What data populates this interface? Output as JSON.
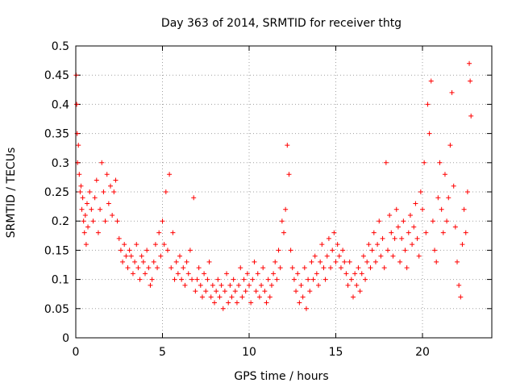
{
  "chart_data": {
    "type": "scatter",
    "title": "Day 363 of 2014, SRMTID for receiver thtg",
    "xlabel": "GPS time / hours",
    "ylabel": "SRMTID / TECUs",
    "xlim": [
      0,
      24
    ],
    "ylim": [
      0,
      0.5
    ],
    "xticks": [
      0,
      5,
      10,
      15,
      20
    ],
    "xtick_labels": [
      "0",
      "5",
      "10",
      "15",
      "20"
    ],
    "yticks": [
      0,
      0.05,
      0.1,
      0.15,
      0.2,
      0.25,
      0.3,
      0.35,
      0.4,
      0.45,
      0.5
    ],
    "ytick_labels": [
      "0",
      "0.05",
      "0.1",
      "0.15",
      "0.2",
      "0.25",
      "0.3",
      "0.35",
      "0.4",
      "0.45",
      "0.5"
    ],
    "grid": true,
    "marker": "plus",
    "color": "#ff0000",
    "series": [
      {
        "name": "SRMTID",
        "points": [
          [
            0.02,
            0.45
          ],
          [
            0.05,
            0.4
          ],
          [
            0.08,
            0.35
          ],
          [
            0.1,
            0.3
          ],
          [
            0.15,
            0.33
          ],
          [
            0.2,
            0.28
          ],
          [
            0.25,
            0.25
          ],
          [
            0.3,
            0.26
          ],
          [
            0.35,
            0.22
          ],
          [
            0.4,
            0.24
          ],
          [
            0.45,
            0.2
          ],
          [
            0.5,
            0.18
          ],
          [
            0.55,
            0.21
          ],
          [
            0.6,
            0.16
          ],
          [
            0.65,
            0.23
          ],
          [
            0.7,
            0.19
          ],
          [
            0.8,
            0.25
          ],
          [
            0.9,
            0.22
          ],
          [
            1.0,
            0.2
          ],
          [
            1.1,
            0.24
          ],
          [
            1.2,
            0.27
          ],
          [
            1.3,
            0.18
          ],
          [
            1.4,
            0.22
          ],
          [
            1.5,
            0.3
          ],
          [
            1.6,
            0.25
          ],
          [
            1.7,
            0.2
          ],
          [
            1.8,
            0.28
          ],
          [
            1.9,
            0.23
          ],
          [
            2.0,
            0.26
          ],
          [
            2.1,
            0.21
          ],
          [
            2.2,
            0.25
          ],
          [
            2.3,
            0.27
          ],
          [
            2.4,
            0.2
          ],
          [
            2.5,
            0.17
          ],
          [
            2.6,
            0.15
          ],
          [
            2.7,
            0.13
          ],
          [
            2.8,
            0.16
          ],
          [
            2.9,
            0.14
          ],
          [
            3.0,
            0.12
          ],
          [
            3.1,
            0.15
          ],
          [
            3.2,
            0.14
          ],
          [
            3.3,
            0.11
          ],
          [
            3.4,
            0.13
          ],
          [
            3.5,
            0.16
          ],
          [
            3.6,
            0.12
          ],
          [
            3.7,
            0.1
          ],
          [
            3.8,
            0.14
          ],
          [
            3.9,
            0.13
          ],
          [
            4.0,
            0.11
          ],
          [
            4.1,
            0.15
          ],
          [
            4.2,
            0.12
          ],
          [
            4.3,
            0.09
          ],
          [
            4.4,
            0.1
          ],
          [
            4.5,
            0.13
          ],
          [
            4.6,
            0.16
          ],
          [
            4.7,
            0.12
          ],
          [
            4.8,
            0.18
          ],
          [
            4.9,
            0.14
          ],
          [
            5.0,
            0.2
          ],
          [
            5.1,
            0.16
          ],
          [
            5.2,
            0.25
          ],
          [
            5.3,
            0.15
          ],
          [
            5.4,
            0.28
          ],
          [
            5.5,
            0.12
          ],
          [
            5.6,
            0.18
          ],
          [
            5.7,
            0.1
          ],
          [
            5.8,
            0.13
          ],
          [
            5.9,
            0.11
          ],
          [
            6.0,
            0.14
          ],
          [
            6.1,
            0.1
          ],
          [
            6.2,
            0.12
          ],
          [
            6.3,
            0.09
          ],
          [
            6.4,
            0.13
          ],
          [
            6.5,
            0.11
          ],
          [
            6.6,
            0.15
          ],
          [
            6.7,
            0.1
          ],
          [
            6.8,
            0.24
          ],
          [
            6.9,
            0.08
          ],
          [
            7.0,
            0.1
          ],
          [
            7.1,
            0.12
          ],
          [
            7.2,
            0.09
          ],
          [
            7.3,
            0.07
          ],
          [
            7.4,
            0.11
          ],
          [
            7.5,
            0.08
          ],
          [
            7.6,
            0.1
          ],
          [
            7.7,
            0.13
          ],
          [
            7.8,
            0.07
          ],
          [
            7.9,
            0.09
          ],
          [
            8.0,
            0.06
          ],
          [
            8.1,
            0.08
          ],
          [
            8.2,
            0.1
          ],
          [
            8.3,
            0.07
          ],
          [
            8.4,
            0.09
          ],
          [
            8.5,
            0.05
          ],
          [
            8.6,
            0.08
          ],
          [
            8.7,
            0.11
          ],
          [
            8.8,
            0.06
          ],
          [
            8.9,
            0.09
          ],
          [
            9.0,
            0.07
          ],
          [
            9.1,
            0.1
          ],
          [
            9.2,
            0.08
          ],
          [
            9.3,
            0.06
          ],
          [
            9.4,
            0.09
          ],
          [
            9.5,
            0.12
          ],
          [
            9.6,
            0.07
          ],
          [
            9.7,
            0.1
          ],
          [
            9.8,
            0.08
          ],
          [
            9.9,
            0.11
          ],
          [
            10.0,
            0.09
          ],
          [
            10.1,
            0.06
          ],
          [
            10.2,
            0.1
          ],
          [
            10.3,
            0.13
          ],
          [
            10.4,
            0.08
          ],
          [
            10.5,
            0.11
          ],
          [
            10.6,
            0.07
          ],
          [
            10.7,
            0.09
          ],
          [
            10.8,
            0.12
          ],
          [
            10.9,
            0.08
          ],
          [
            11.0,
            0.06
          ],
          [
            11.1,
            0.1
          ],
          [
            11.2,
            0.07
          ],
          [
            11.3,
            0.09
          ],
          [
            11.4,
            0.11
          ],
          [
            11.5,
            0.13
          ],
          [
            11.6,
            0.1
          ],
          [
            11.7,
            0.15
          ],
          [
            11.8,
            0.12
          ],
          [
            11.9,
            0.2
          ],
          [
            12.0,
            0.18
          ],
          [
            12.1,
            0.22
          ],
          [
            12.2,
            0.33
          ],
          [
            12.3,
            0.28
          ],
          [
            12.4,
            0.15
          ],
          [
            12.5,
            0.12
          ],
          [
            12.6,
            0.1
          ],
          [
            12.7,
            0.08
          ],
          [
            12.8,
            0.11
          ],
          [
            12.9,
            0.06
          ],
          [
            13.0,
            0.09
          ],
          [
            13.1,
            0.07
          ],
          [
            13.2,
            0.12
          ],
          [
            13.3,
            0.05
          ],
          [
            13.4,
            0.1
          ],
          [
            13.5,
            0.08
          ],
          [
            13.6,
            0.13
          ],
          [
            13.7,
            0.1
          ],
          [
            13.8,
            0.14
          ],
          [
            13.9,
            0.11
          ],
          [
            14.0,
            0.09
          ],
          [
            14.1,
            0.13
          ],
          [
            14.2,
            0.16
          ],
          [
            14.3,
            0.12
          ],
          [
            14.4,
            0.1
          ],
          [
            14.5,
            0.14
          ],
          [
            14.6,
            0.17
          ],
          [
            14.7,
            0.12
          ],
          [
            14.8,
            0.15
          ],
          [
            14.9,
            0.18
          ],
          [
            15.0,
            0.13
          ],
          [
            15.1,
            0.16
          ],
          [
            15.2,
            0.14
          ],
          [
            15.3,
            0.12
          ],
          [
            15.4,
            0.15
          ],
          [
            15.5,
            0.13
          ],
          [
            15.6,
            0.11
          ],
          [
            15.7,
            0.09
          ],
          [
            15.8,
            0.13
          ],
          [
            15.9,
            0.1
          ],
          [
            16.0,
            0.07
          ],
          [
            16.1,
            0.11
          ],
          [
            16.2,
            0.09
          ],
          [
            16.3,
            0.12
          ],
          [
            16.4,
            0.08
          ],
          [
            16.5,
            0.11
          ],
          [
            16.6,
            0.14
          ],
          [
            16.7,
            0.1
          ],
          [
            16.8,
            0.13
          ],
          [
            16.9,
            0.16
          ],
          [
            17.0,
            0.12
          ],
          [
            17.1,
            0.15
          ],
          [
            17.2,
            0.18
          ],
          [
            17.3,
            0.13
          ],
          [
            17.4,
            0.16
          ],
          [
            17.5,
            0.2
          ],
          [
            17.6,
            0.14
          ],
          [
            17.7,
            0.17
          ],
          [
            17.8,
            0.12
          ],
          [
            17.9,
            0.3
          ],
          [
            18.0,
            0.15
          ],
          [
            18.1,
            0.21
          ],
          [
            18.2,
            0.18
          ],
          [
            18.3,
            0.14
          ],
          [
            18.4,
            0.17
          ],
          [
            18.5,
            0.22
          ],
          [
            18.6,
            0.19
          ],
          [
            18.7,
            0.13
          ],
          [
            18.8,
            0.17
          ],
          [
            18.9,
            0.2
          ],
          [
            19.0,
            0.15
          ],
          [
            19.1,
            0.12
          ],
          [
            19.2,
            0.18
          ],
          [
            19.3,
            0.21
          ],
          [
            19.4,
            0.16
          ],
          [
            19.5,
            0.19
          ],
          [
            19.6,
            0.23
          ],
          [
            19.7,
            0.17
          ],
          [
            19.8,
            0.14
          ],
          [
            19.9,
            0.25
          ],
          [
            20.0,
            0.22
          ],
          [
            20.1,
            0.3
          ],
          [
            20.2,
            0.18
          ],
          [
            20.3,
            0.4
          ],
          [
            20.4,
            0.35
          ],
          [
            20.5,
            0.44
          ],
          [
            20.6,
            0.2
          ],
          [
            20.7,
            0.15
          ],
          [
            20.8,
            0.13
          ],
          [
            20.9,
            0.24
          ],
          [
            21.0,
            0.3
          ],
          [
            21.1,
            0.22
          ],
          [
            21.2,
            0.18
          ],
          [
            21.3,
            0.28
          ],
          [
            21.4,
            0.2
          ],
          [
            21.5,
            0.24
          ],
          [
            21.6,
            0.33
          ],
          [
            21.7,
            0.42
          ],
          [
            21.8,
            0.26
          ],
          [
            21.9,
            0.19
          ],
          [
            22.0,
            0.13
          ],
          [
            22.1,
            0.09
          ],
          [
            22.2,
            0.07
          ],
          [
            22.3,
            0.16
          ],
          [
            22.4,
            0.22
          ],
          [
            22.5,
            0.18
          ],
          [
            22.6,
            0.25
          ],
          [
            22.7,
            0.47
          ],
          [
            22.75,
            0.44
          ],
          [
            22.8,
            0.38
          ]
        ]
      }
    ]
  }
}
